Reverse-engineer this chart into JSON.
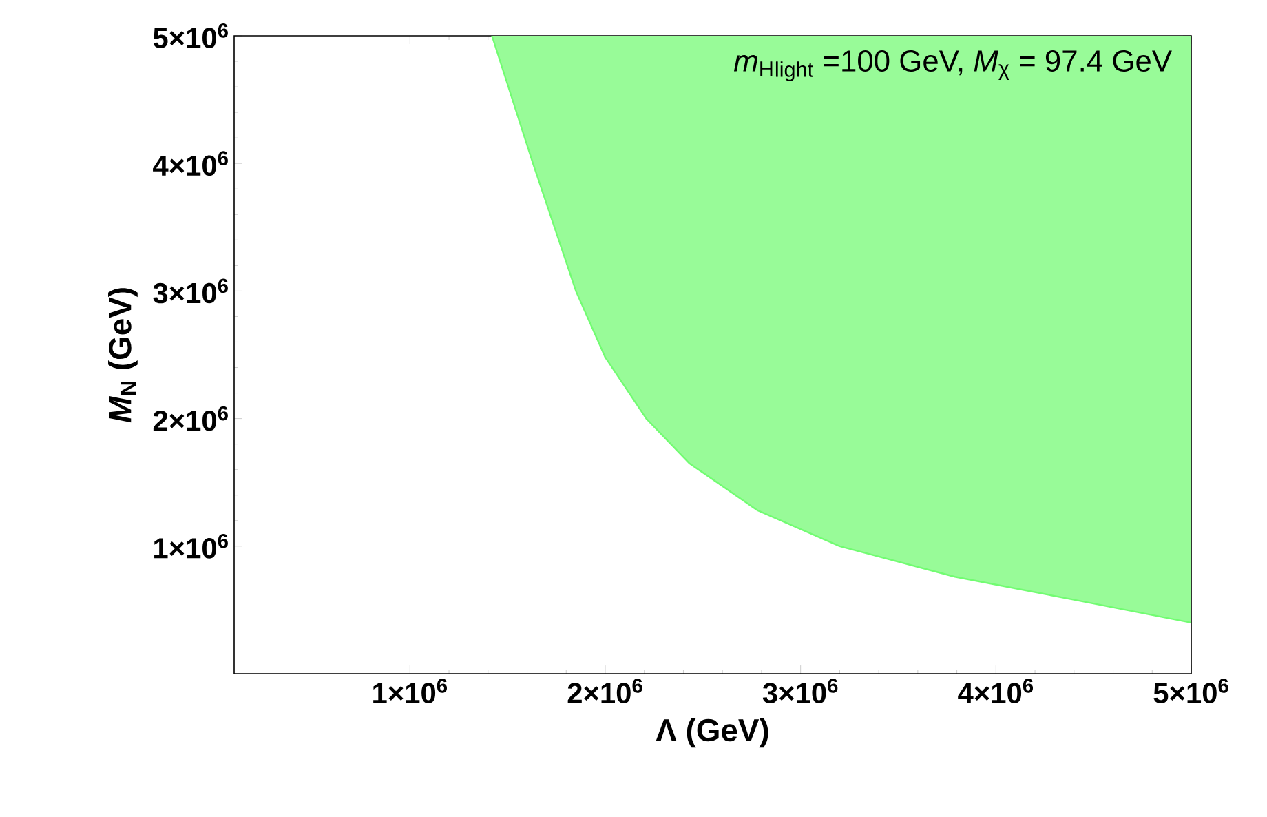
{
  "chart_data": {
    "type": "area",
    "xlabel": "Λ (GeV)",
    "ylabel": "*M*$_{N}$ (GeV)",
    "annotations": [
      "*m*$_{H}$$_{light}$ =100 GeV, *M*$_{χ}$ = 97.4 GeV"
    ],
    "xlim": [
      100000,
      5000000
    ],
    "ylim": [
      0,
      5000000
    ],
    "xticks": [
      {
        "value": 1000000,
        "label": "1×10$^{6}$"
      },
      {
        "value": 2000000,
        "label": "2×10$^{6}$"
      },
      {
        "value": 3000000,
        "label": "3×10$^{6}$"
      },
      {
        "value": 4000000,
        "label": "4×10$^{6}$"
      },
      {
        "value": 5000000,
        "label": "5×10$^{6}$"
      }
    ],
    "yticks": [
      {
        "value": 1000000,
        "label": "1×10$^{6}$"
      },
      {
        "value": 2000000,
        "label": "2×10$^{6}$"
      },
      {
        "value": 3000000,
        "label": "3×10$^{6}$"
      },
      {
        "value": 4000000,
        "label": "4×10$^{6}$"
      },
      {
        "value": 5000000,
        "label": "5×10$^{6}$"
      }
    ],
    "series": [
      {
        "color": "#98fb98",
        "x": [
          1420000,
          1630000,
          1850000,
          2000000,
          2210000,
          2430000,
          2780000,
          3200000,
          3790000,
          4400000,
          5000000
        ],
        "values": [
          5000000,
          4000000,
          3000000,
          2480000,
          2000000,
          1650000,
          1280000,
          1000000,
          760000,
          580000,
          400000
        ]
      }
    ]
  }
}
